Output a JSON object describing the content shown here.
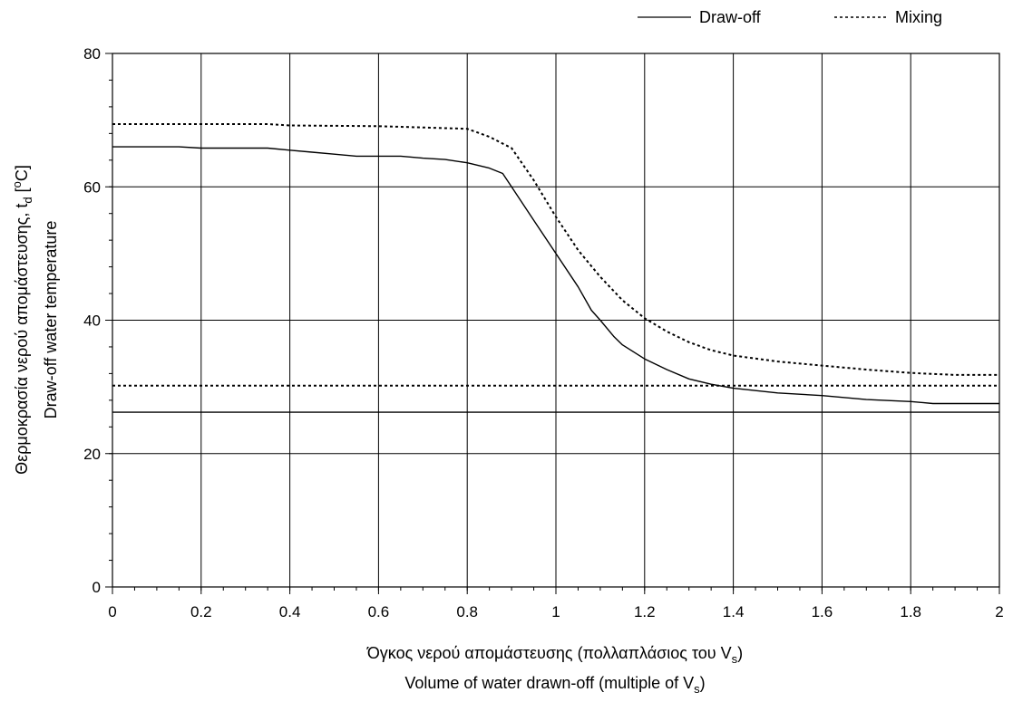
{
  "chart_data": {
    "type": "line",
    "title": "",
    "xlabel": {
      "line1_main": "Όγκος νερού απομάστευσης (πολλαπλάσιος του V",
      "line1_sub": "s",
      "line1_tail": ")",
      "line2_main": "Volume of water drawn-off (multiple of V",
      "line2_sub": "s",
      "line2_tail": ")"
    },
    "ylabel": {
      "line1_main": "Θερμοκρασία νερού απομάστευσης, t",
      "line1_sub": "d",
      "line1_tail": " [",
      "line1_sup": "o",
      "line1_end": "C]",
      "line2": "Draw-off water temperature"
    },
    "xlim": [
      0,
      2
    ],
    "ylim": [
      0,
      80
    ],
    "x_ticks": [
      "0",
      "0.2",
      "0.4",
      "0.6",
      "0.8",
      "1",
      "1.2",
      "1.4",
      "1.6",
      "1.8",
      "2"
    ],
    "y_ticks": [
      "0",
      "20",
      "40",
      "60",
      "80"
    ],
    "grid": true,
    "legend_position": "top-right",
    "legend": [
      {
        "label": "Draw-off",
        "style": "solid"
      },
      {
        "label": "Mixing",
        "style": "dotted"
      }
    ],
    "series": [
      {
        "name": "Draw-off",
        "style": "solid",
        "x": [
          0,
          0.15,
          0.2,
          0.35,
          0.4,
          0.45,
          0.5,
          0.55,
          0.6,
          0.65,
          0.7,
          0.75,
          0.8,
          0.85,
          0.88,
          0.9,
          0.95,
          1.0,
          1.05,
          1.08,
          1.1,
          1.13,
          1.15,
          1.2,
          1.25,
          1.3,
          1.35,
          1.4,
          1.5,
          1.6,
          1.7,
          1.8,
          1.85,
          1.9,
          2.0
        ],
        "y": [
          66,
          66,
          65.8,
          65.8,
          65.5,
          65.2,
          64.9,
          64.6,
          64.6,
          64.6,
          64.3,
          64.1,
          63.6,
          62.8,
          62,
          60,
          55,
          50,
          45,
          41.5,
          40,
          37.6,
          36.3,
          34.2,
          32.6,
          31.2,
          30.4,
          29.8,
          29.1,
          28.7,
          28.1,
          27.8,
          27.5,
          27.5,
          27.5
        ]
      },
      {
        "name": "Mixing",
        "style": "dotted",
        "x": [
          0,
          0.35,
          0.4,
          0.6,
          0.65,
          0.8,
          0.85,
          0.9,
          0.95,
          1.0,
          1.05,
          1.1,
          1.15,
          1.2,
          1.25,
          1.3,
          1.35,
          1.4,
          1.5,
          1.6,
          1.7,
          1.8,
          1.9,
          2.0
        ],
        "y": [
          69.4,
          69.4,
          69.2,
          69.1,
          69.0,
          68.7,
          67.5,
          65.8,
          61,
          55.5,
          50.5,
          46.5,
          43,
          40.3,
          38.3,
          36.7,
          35.5,
          34.7,
          33.8,
          33.2,
          32.6,
          32.1,
          31.8,
          31.8
        ]
      },
      {
        "name": "Draw-off",
        "style": "solid",
        "x": [
          0,
          2
        ],
        "y": [
          26.2,
          26.2
        ]
      },
      {
        "name": "Mixing",
        "style": "dotted",
        "x": [
          0,
          2
        ],
        "y": [
          30.2,
          30.2
        ]
      }
    ]
  }
}
